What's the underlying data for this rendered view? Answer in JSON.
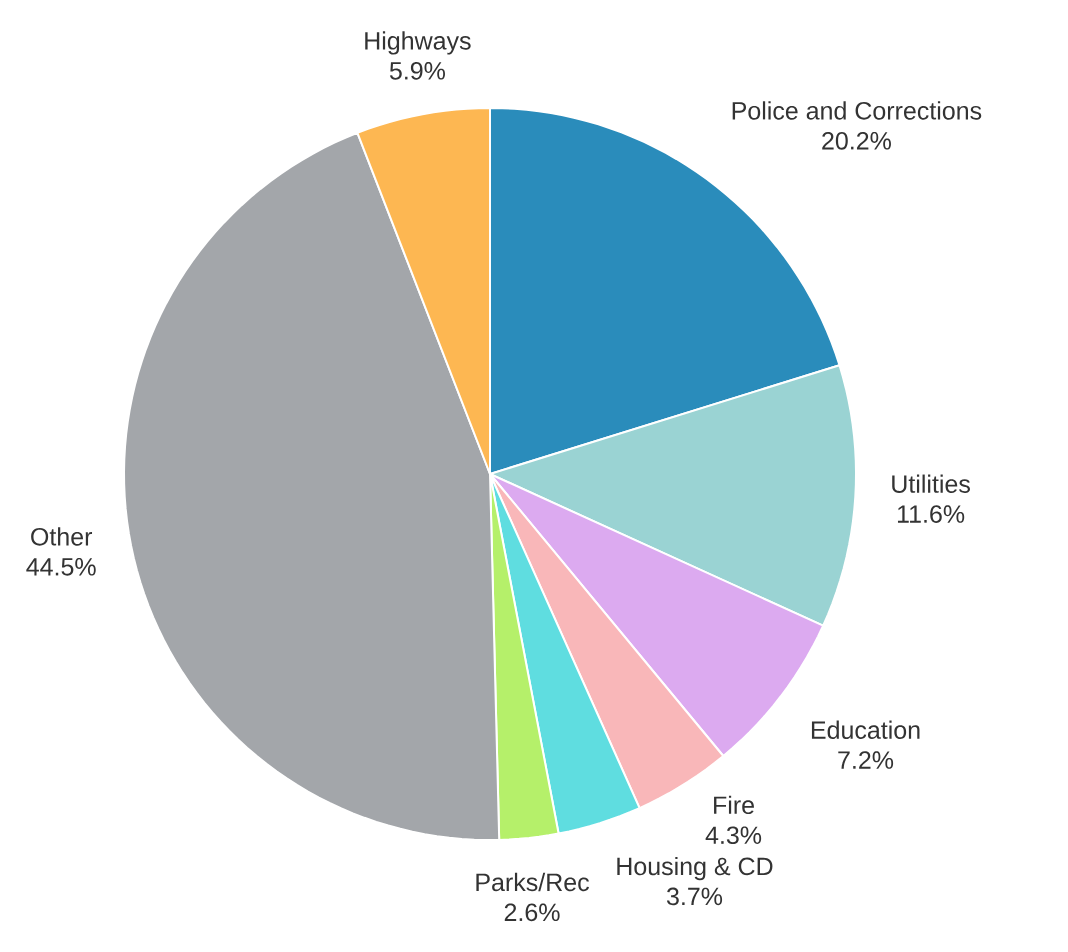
{
  "chart_data": {
    "type": "pie",
    "categories": [
      "Police and Corrections",
      "Utilities",
      "Education",
      "Fire",
      "Housing & CD",
      "Parks/Rec",
      "Other",
      "Highways"
    ],
    "values": [
      20.2,
      11.6,
      7.2,
      4.3,
      3.7,
      2.6,
      44.5,
      5.9
    ],
    "value_labels": [
      "20.2%",
      "11.6%",
      "7.2%",
      "4.3%",
      "3.7%",
      "2.6%",
      "44.5%",
      "5.9%"
    ],
    "colors": [
      "#2a8cbb",
      "#9ad3d3",
      "#dcaaf0",
      "#f9b7b9",
      "#5fdde0",
      "#b5f06a",
      "#a3a6aa",
      "#fdb752"
    ]
  }
}
